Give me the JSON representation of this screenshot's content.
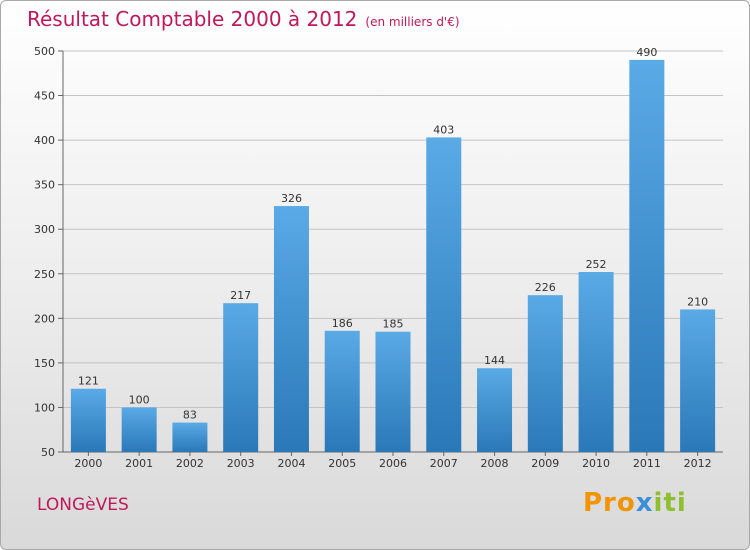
{
  "chart_data": {
    "type": "bar",
    "title": "Résultat Comptable 2000 à 2012",
    "subtitle": "(en milliers d'€)",
    "categories": [
      "2000",
      "2001",
      "2002",
      "2003",
      "2004",
      "2005",
      "2006",
      "2007",
      "2008",
      "2009",
      "2010",
      "2011",
      "2012"
    ],
    "values": [
      121,
      100,
      83,
      217,
      326,
      186,
      185,
      403,
      144,
      226,
      252,
      490,
      210
    ],
    "ylim": [
      50,
      500
    ],
    "yticks": [
      50,
      100,
      150,
      200,
      250,
      300,
      350,
      400,
      450,
      500
    ],
    "grid": true,
    "bar_color_top": "#5aaae6",
    "bar_color_bottom": "#2a78b8"
  },
  "footer": {
    "commune": "LONGèVES",
    "logo": [
      "Pro",
      "x",
      "iti"
    ]
  }
}
